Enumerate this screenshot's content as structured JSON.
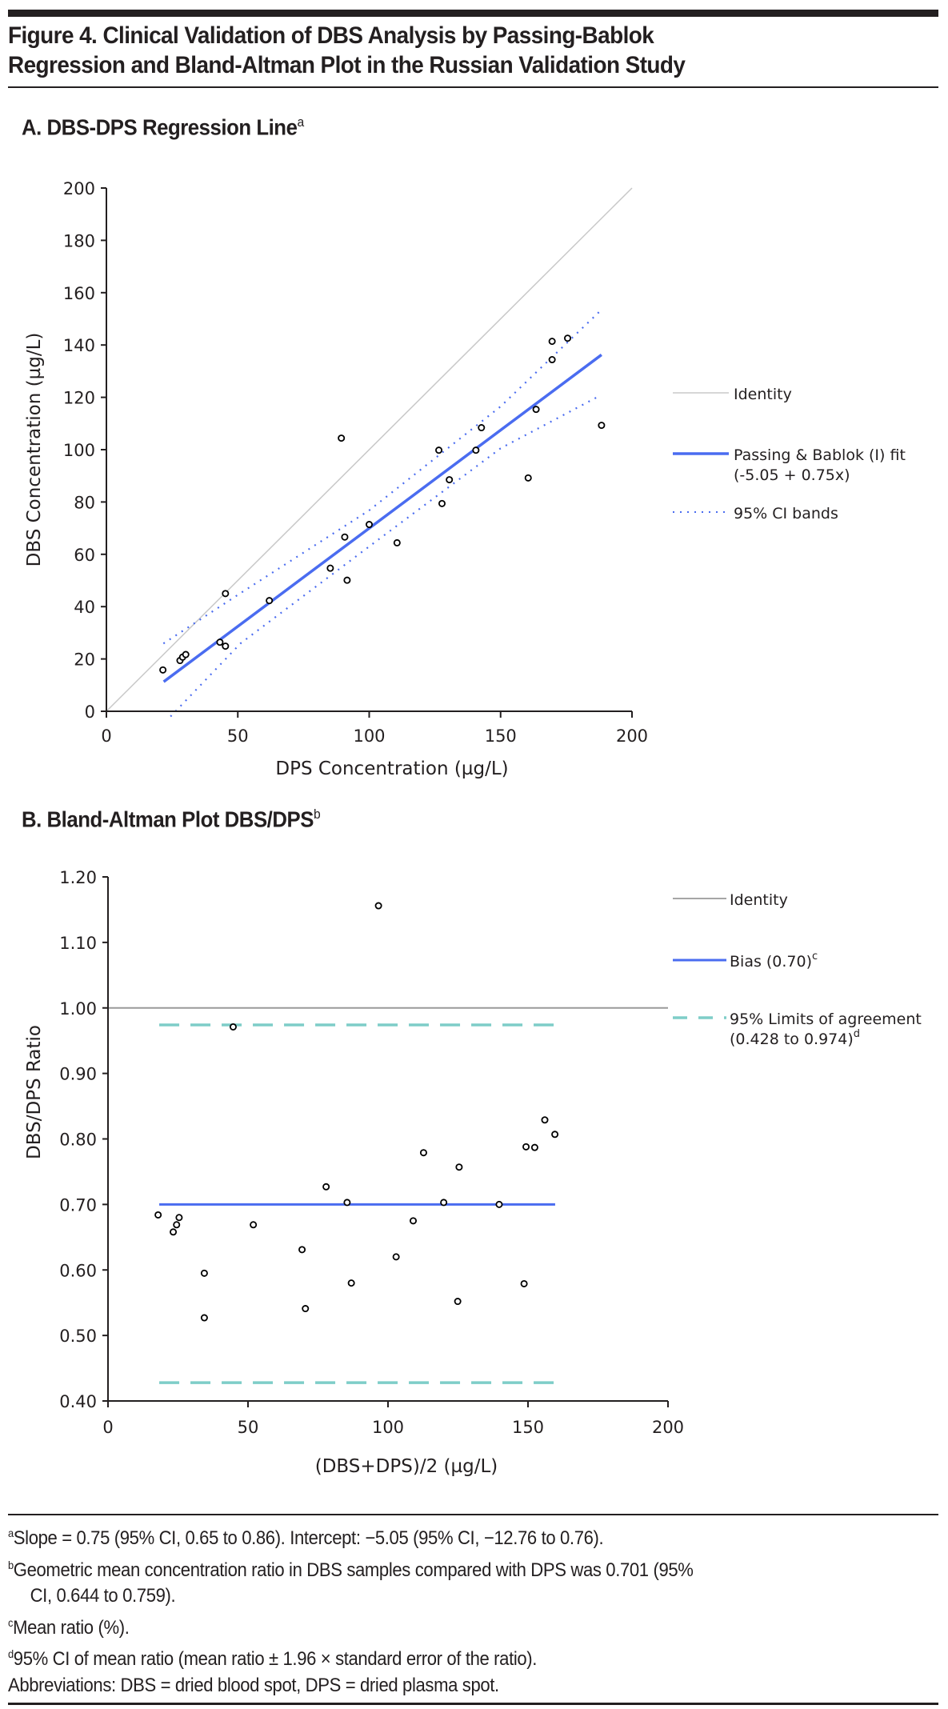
{
  "figure": {
    "title_line1": "Figure 4. Clinical Validation of DBS Analysis by Passing-Bablok",
    "title_line2": "Regression and Bland-Altman Plot in the Russian Validation Study"
  },
  "panels": {
    "a": {
      "title": "A. DBS-DPS Regression Line",
      "title_sup": "a"
    },
    "b": {
      "title": "B. Bland-Altman Plot DBS/DPS",
      "title_sup": "b"
    }
  },
  "colors": {
    "identity": "#c8c8c8",
    "identity_b": "#9a9a9a",
    "fit": "#4a6cf0",
    "loa": "#7ecdc8",
    "axis": "#231f20"
  },
  "chart_data": [
    {
      "type": "scatter",
      "title": "A. DBS-DPS Regression Line",
      "xlabel": "DPS Concentration (µg/L)",
      "ylabel": "DBS Concentration (µg/L)",
      "xlim": [
        0,
        200
      ],
      "ylim": [
        0,
        200
      ],
      "xticks": [
        "0",
        "50",
        "100",
        "150",
        "200"
      ],
      "xtick_values": [
        0,
        50,
        100,
        150,
        200
      ],
      "yticks": [
        "0",
        "20",
        "40",
        "60",
        "80",
        "100",
        "120",
        "140",
        "160",
        "180",
        "200"
      ],
      "ytick_values": [
        0,
        20,
        40,
        60,
        80,
        100,
        120,
        140,
        160,
        180,
        200
      ],
      "grid": false,
      "legend_position": "right",
      "legend": [
        {
          "label": "Identity",
          "style": "solid-thin-gray"
        },
        {
          "label": "Passing & Bablok (I) fit",
          "label2": "(-5.05 + 0.75x)",
          "style": "solid-thick-blue"
        },
        {
          "label": "95% CI bands",
          "style": "dotted-blue"
        }
      ],
      "identity_line": [
        [
          0,
          0
        ],
        [
          200,
          200
        ]
      ],
      "fit": {
        "intercept": -5.05,
        "slope": 0.75,
        "x_range": [
          21.8,
          188.4
        ]
      },
      "ci_upper": [
        [
          21.7,
          25.9
        ],
        [
          51.1,
          45.2
        ],
        [
          100,
          76.8
        ],
        [
          150,
          116.5
        ],
        [
          188.4,
          153.5
        ]
      ],
      "ci_lower": [
        [
          24.4,
          -2.0
        ],
        [
          51.1,
          26.0
        ],
        [
          100,
          63.0
        ],
        [
          150,
          100.5
        ],
        [
          186.6,
          120.0
        ]
      ],
      "points": [
        {
          "x": 21.5,
          "y": 15.8
        },
        {
          "x": 28.0,
          "y": 19.4
        },
        {
          "x": 29.0,
          "y": 20.7
        },
        {
          "x": 30.2,
          "y": 21.7
        },
        {
          "x": 43.2,
          "y": 26.4
        },
        {
          "x": 45.3,
          "y": 24.9
        },
        {
          "x": 45.3,
          "y": 45.0
        },
        {
          "x": 62.0,
          "y": 42.3
        },
        {
          "x": 85.2,
          "y": 54.7
        },
        {
          "x": 90.7,
          "y": 66.6
        },
        {
          "x": 91.6,
          "y": 50.1
        },
        {
          "x": 89.4,
          "y": 104.4
        },
        {
          "x": 100.0,
          "y": 71.4
        },
        {
          "x": 110.6,
          "y": 64.4
        },
        {
          "x": 126.5,
          "y": 99.8
        },
        {
          "x": 127.7,
          "y": 79.4
        },
        {
          "x": 130.5,
          "y": 88.5
        },
        {
          "x": 140.6,
          "y": 99.8
        },
        {
          "x": 142.7,
          "y": 108.4
        },
        {
          "x": 160.5,
          "y": 89.2
        },
        {
          "x": 163.5,
          "y": 115.4
        },
        {
          "x": 169.6,
          "y": 141.4
        },
        {
          "x": 169.6,
          "y": 134.4
        },
        {
          "x": 175.5,
          "y": 142.6
        },
        {
          "x": 188.4,
          "y": 109.3
        }
      ]
    },
    {
      "type": "scatter",
      "title": "B. Bland-Altman Plot DBS/DPS",
      "xlabel": "(DBS+DPS)/2 (µg/L)",
      "ylabel": "DBS/DPS Ratio",
      "xlim": [
        0,
        200
      ],
      "ylim": [
        0.4,
        1.2
      ],
      "xticks": [
        "0",
        "50",
        "100",
        "150",
        "200"
      ],
      "xtick_values": [
        0,
        50,
        100,
        150,
        200
      ],
      "yticks": [
        "0.40",
        "0.50",
        "0.60",
        "0.70",
        "0.80",
        "0.90",
        "1.00",
        "1.10",
        "1.20"
      ],
      "ytick_values": [
        0.4,
        0.5,
        0.6,
        0.7,
        0.8,
        0.9,
        1.0,
        1.1,
        1.2
      ],
      "grid": false,
      "legend_position": "right",
      "legend": [
        {
          "label": "Identity",
          "sup": "",
          "style": "solid-thin-gray"
        },
        {
          "label": "Bias (0.70)",
          "sup": "c",
          "style": "solid-thick-blue"
        },
        {
          "label": "95% Limits of agreement",
          "label2": "(0.428 to 0.974)",
          "sup": "d",
          "style": "dashed-teal"
        }
      ],
      "identity_y": 1.0,
      "bias": {
        "y": 0.7,
        "x_range": [
          18.3,
          159.7
        ]
      },
      "loa_upper": {
        "y": 0.974,
        "x_range": [
          18.3,
          159.7
        ]
      },
      "loa_lower": {
        "y": 0.428,
        "x_range": [
          18.3,
          159.7
        ]
      },
      "points": [
        {
          "x": 17.9,
          "y": 0.684
        },
        {
          "x": 23.3,
          "y": 0.658
        },
        {
          "x": 24.5,
          "y": 0.669
        },
        {
          "x": 25.4,
          "y": 0.68
        },
        {
          "x": 34.4,
          "y": 0.595
        },
        {
          "x": 34.4,
          "y": 0.527
        },
        {
          "x": 44.7,
          "y": 0.971
        },
        {
          "x": 51.9,
          "y": 0.669
        },
        {
          "x": 69.3,
          "y": 0.631
        },
        {
          "x": 70.5,
          "y": 0.541
        },
        {
          "x": 77.9,
          "y": 0.727
        },
        {
          "x": 85.4,
          "y": 0.703
        },
        {
          "x": 86.9,
          "y": 0.58
        },
        {
          "x": 96.6,
          "y": 1.156
        },
        {
          "x": 102.9,
          "y": 0.62
        },
        {
          "x": 109.0,
          "y": 0.675
        },
        {
          "x": 112.7,
          "y": 0.779
        },
        {
          "x": 119.9,
          "y": 0.703
        },
        {
          "x": 124.9,
          "y": 0.552
        },
        {
          "x": 125.4,
          "y": 0.757
        },
        {
          "x": 139.7,
          "y": 0.7
        },
        {
          "x": 148.6,
          "y": 0.579
        },
        {
          "x": 149.3,
          "y": 0.788
        },
        {
          "x": 152.4,
          "y": 0.787
        },
        {
          "x": 156.0,
          "y": 0.829
        },
        {
          "x": 159.6,
          "y": 0.807
        }
      ]
    }
  ],
  "footnotes": [
    {
      "sup": "a",
      "text": "Slope = 0.75 (95% CI, 0.65 to 0.86). Intercept: −5.05 (95% CI, −12.76 to 0.76)."
    },
    {
      "sup": "b",
      "text": "Geometric mean concentration ratio in DBS samples compared with DPS was 0.701 (95%"
    },
    {
      "sup": "",
      "text": "CI, 0.644 to 0.759).",
      "indent": true
    },
    {
      "sup": "c",
      "text": "Mean ratio (%)."
    },
    {
      "sup": "d",
      "text": "95% CI of mean ratio (mean ratio ± 1.96 × standard error of the ratio)."
    },
    {
      "sup": "",
      "text": "Abbreviations: DBS = dried blood spot, DPS = dried plasma spot."
    }
  ]
}
